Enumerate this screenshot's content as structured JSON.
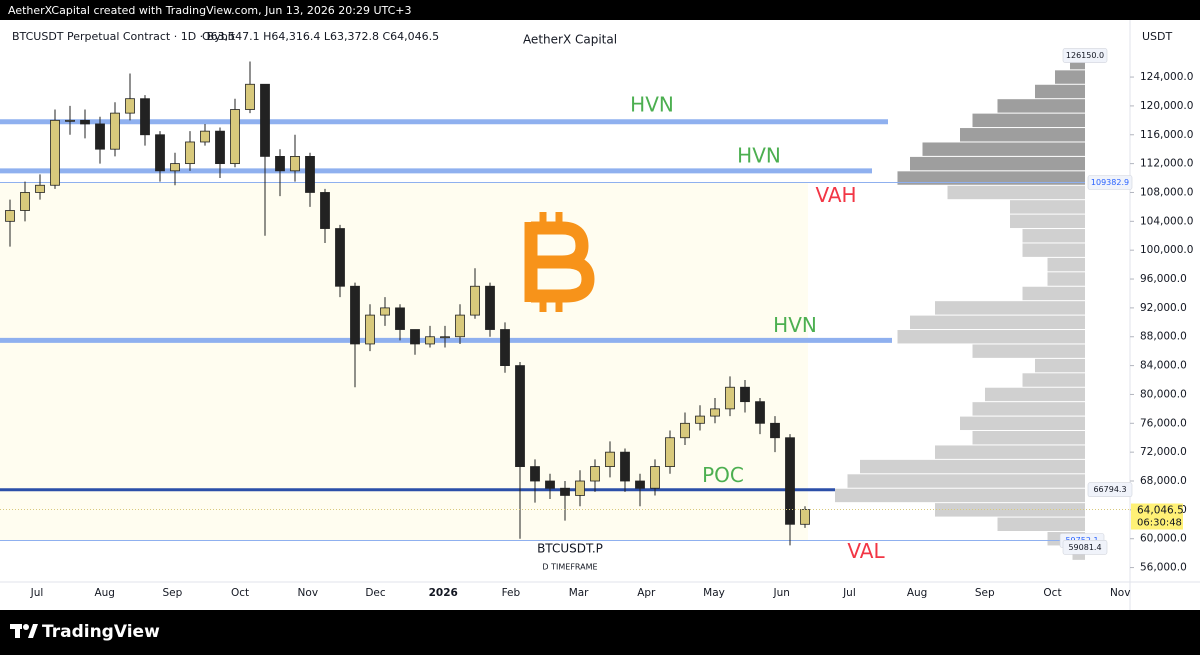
{
  "header": {
    "credit": "AetherXCapital created with TradingView.com, Jun 13, 2026 20:29 UTC+3"
  },
  "footer": {
    "brand": "TradingView"
  },
  "chart_data": {
    "type": "candlestick",
    "title": "AetherX Capital",
    "symbol_line": "BTCUSDT Perpetual Contract · 1D · Bybit",
    "ohlc_line": "O63,547.1 H64,316.4 L63,372.8 C64,046.5",
    "currency": "USDT",
    "watermark": "BTCUSDT.P",
    "watermark_sub": "D TIMEFRAME",
    "xticks": [
      "Jul",
      "Aug",
      "Sep",
      "Oct",
      "Nov",
      "Dec",
      "2026",
      "Feb",
      "Mar",
      "Apr",
      "May",
      "Jun",
      "Jul",
      "Aug",
      "Sep",
      "Oct",
      "Nov"
    ],
    "ylim": [
      54000,
      130800
    ],
    "yticks": [
      {
        "value": 56000,
        "label": "56,000.0"
      },
      {
        "value": 60000,
        "label": "60,000.0"
      },
      {
        "value": 64000,
        "label": "64,000.0"
      },
      {
        "value": 68000,
        "label": "68,000.0"
      },
      {
        "value": 72000,
        "label": "72,000.0"
      },
      {
        "value": 76000,
        "label": "76,000.0"
      },
      {
        "value": 80000,
        "label": "80,000.0"
      },
      {
        "value": 84000,
        "label": "84,000.0"
      },
      {
        "value": 88000,
        "label": "88,000.0"
      },
      {
        "value": 92000,
        "label": "92,000.0"
      },
      {
        "value": 96000,
        "label": "96,000.0"
      },
      {
        "value": 100000,
        "label": "100,000.0"
      },
      {
        "value": 104000,
        "label": "104,000.0"
      },
      {
        "value": 108000,
        "label": "108,000.0"
      },
      {
        "value": 112000,
        "label": "112,000.0"
      },
      {
        "value": 116000,
        "label": "116,000.0"
      },
      {
        "value": 120000,
        "label": "120,000.0"
      },
      {
        "value": 124000,
        "label": "124,000.0"
      }
    ],
    "up_color": "#d8c97c",
    "down_color": "#222222",
    "open": [
      104000,
      105500,
      108000,
      109000,
      118000,
      118000,
      117500,
      114000,
      119000,
      121000,
      116000,
      111000,
      112000,
      115000,
      116500,
      112000,
      119500,
      123000,
      113000,
      111000,
      113000,
      108000,
      103000,
      95000,
      87000,
      91000,
      92000,
      89000,
      87000,
      88000,
      88000,
      91000,
      95000,
      89000,
      84000,
      70000,
      68000,
      67000,
      66000,
      68000,
      70000,
      72000,
      68000,
      67000,
      70000,
      74000,
      76000,
      77000,
      78000,
      81000,
      79000,
      76000,
      74000,
      62000
    ],
    "high": [
      107000,
      109500,
      110500,
      119500,
      120000,
      119500,
      118500,
      120500,
      124500,
      121500,
      116500,
      113500,
      116500,
      117500,
      117000,
      121000,
      126150,
      123000,
      114000,
      116000,
      113500,
      108500,
      103500,
      95500,
      92500,
      93500,
      92500,
      89000,
      89500,
      89500,
      92500,
      97500,
      95500,
      90000,
      84500,
      71000,
      69000,
      68000,
      69500,
      71000,
      73500,
      72500,
      69000,
      71000,
      75000,
      77500,
      78500,
      79500,
      82500,
      82000,
      79500,
      77000,
      74500,
      64500
    ],
    "low": [
      100500,
      104000,
      107000,
      108500,
      116000,
      115500,
      112000,
      113000,
      118000,
      114500,
      109500,
      109000,
      111000,
      114500,
      110000,
      111500,
      119000,
      102000,
      107500,
      109500,
      106000,
      101000,
      93500,
      81000,
      86000,
      89500,
      87500,
      85500,
      86500,
      86500,
      87000,
      90500,
      88000,
      83000,
      60000,
      65000,
      65500,
      62500,
      64500,
      66500,
      68500,
      66500,
      64500,
      66000,
      69000,
      73000,
      75000,
      76000,
      77000,
      77500,
      74500,
      72000,
      59081.4,
      61500
    ],
    "close": [
      105500,
      108000,
      109000,
      118000,
      118000,
      117500,
      114000,
      119000,
      121000,
      116000,
      111000,
      112000,
      115000,
      116500,
      112000,
      119500,
      123000,
      113000,
      111000,
      113000,
      108000,
      103000,
      95000,
      87000,
      91000,
      92000,
      89000,
      87000,
      88000,
      88000,
      91000,
      95000,
      89000,
      84000,
      70000,
      68000,
      67000,
      66000,
      68000,
      70000,
      72000,
      68000,
      67000,
      70000,
      74000,
      76000,
      77000,
      78000,
      81000,
      79000,
      76000,
      74000,
      62000,
      64046.5
    ],
    "volume_profile": {
      "bins": [
        58000,
        60000,
        62000,
        64000,
        66000,
        68000,
        70000,
        72000,
        74000,
        76000,
        78000,
        80000,
        82000,
        84000,
        86000,
        88000,
        90000,
        92000,
        94000,
        96000,
        98000,
        100000,
        102000,
        104000,
        106000,
        108000,
        110000,
        112000,
        114000,
        116000,
        118000,
        120000,
        122000,
        124000,
        126000
      ],
      "values": [
        5,
        15,
        35,
        60,
        100,
        95,
        90,
        60,
        45,
        50,
        45,
        40,
        25,
        20,
        45,
        75,
        70,
        60,
        25,
        15,
        15,
        25,
        25,
        30,
        30,
        55,
        75,
        70,
        65,
        50,
        45,
        35,
        20,
        12,
        6
      ],
      "color": "#d0d0d0",
      "outside_color": "#9e9e9e"
    },
    "value_area": {
      "vah": 109382.9,
      "val": 59752.1,
      "color": "#fffdf0"
    },
    "levels": [
      {
        "name": "HVN",
        "value": 117800,
        "color": "#8fb0ef"
      },
      {
        "name": "HVN",
        "value": 111000,
        "color": "#8fb0ef"
      },
      {
        "name": "VAH",
        "value": 109382.9,
        "color": "#8fb0ef"
      },
      {
        "name": "HVN",
        "value": 87500,
        "color": "#8fb0ef"
      },
      {
        "name": "POC",
        "value": 66794.3,
        "color": "#2b4fa8"
      },
      {
        "name": "VAL",
        "value": 59752.1,
        "color": "#8fb0ef"
      }
    ],
    "price_labels": [
      {
        "value": 126150,
        "label": "126150.0"
      },
      {
        "value": 109382.9,
        "label": "109382.9"
      },
      {
        "value": 66794.3,
        "label": "66794.3"
      },
      {
        "value": 59752.1,
        "label": "59752.1"
      },
      {
        "value": 59081.4,
        "label": "59081.4"
      }
    ],
    "last_price": {
      "value": 64046.5,
      "label": "64,046.5",
      "countdown": "06:30:48"
    }
  }
}
